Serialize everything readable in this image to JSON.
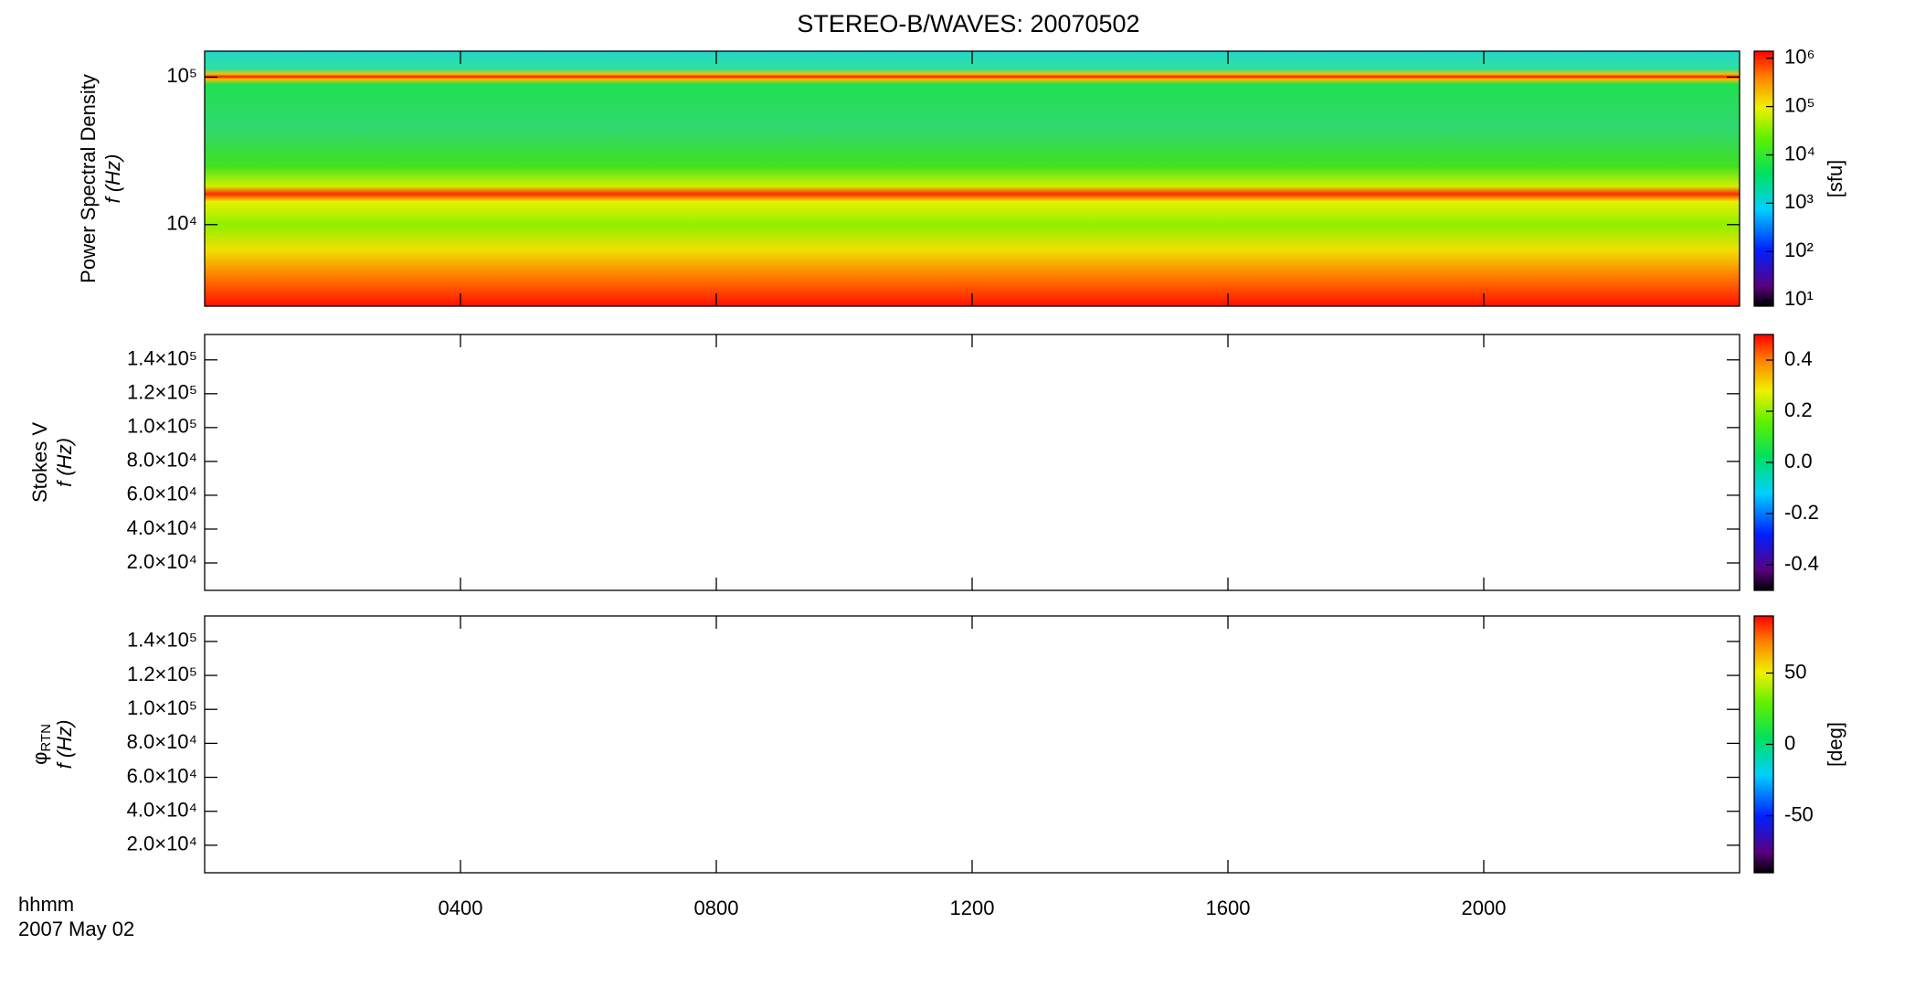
{
  "title": "STEREO-B/WAVES: 20070502",
  "x_axis": {
    "label": "hhmm",
    "date": "2007 May 02",
    "xlim": [
      0,
      24
    ],
    "xticks": [
      {
        "value": 4,
        "label": "0400"
      },
      {
        "value": 8,
        "label": "0800"
      },
      {
        "value": 12,
        "label": "1200"
      },
      {
        "value": 16,
        "label": "1600"
      },
      {
        "value": 20,
        "label": "2000"
      }
    ]
  },
  "chart_data": [
    {
      "type": "heatmap",
      "quantity": "Power Spectral Density",
      "ylabel": "f (Hz)",
      "yscale": "log",
      "ylim": [
        2800,
        150000
      ],
      "yticks": [
        {
          "value": 10000,
          "label": "10⁴"
        },
        {
          "value": 100000,
          "label": "10⁵"
        }
      ],
      "colorbar": {
        "scale": "log",
        "lim": [
          7.4,
          1400000
        ],
        "label": "[sfu]",
        "ticks": [
          {
            "value": 10,
            "label": "10¹"
          },
          {
            "value": 100,
            "label": "10²"
          },
          {
            "value": 1000,
            "label": "10³"
          },
          {
            "value": 10000,
            "label": "10⁴"
          },
          {
            "value": 100000,
            "label": "10⁵"
          },
          {
            "value": 1000000,
            "label": "10⁶"
          }
        ]
      }
    },
    {
      "type": "heatmap",
      "quantity": "Stokes V",
      "ylabel": "f (Hz)",
      "yscale": "linear",
      "ylim": [
        3800,
        155000
      ],
      "yticks": [
        {
          "value": 20000,
          "label": "2.0×10⁴"
        },
        {
          "value": 40000,
          "label": "4.0×10⁴"
        },
        {
          "value": 60000,
          "label": "6.0×10⁴"
        },
        {
          "value": 80000,
          "label": "8.0×10⁴"
        },
        {
          "value": 100000,
          "label": "1.0×10⁵"
        },
        {
          "value": 120000,
          "label": "1.2×10⁵"
        },
        {
          "value": 140000,
          "label": "1.4×10⁵"
        }
      ],
      "colorbar": {
        "scale": "linear",
        "lim": [
          -0.5,
          0.5
        ],
        "ticks": [
          {
            "value": -0.4,
            "label": "-0.4"
          },
          {
            "value": -0.2,
            "label": "-0.2"
          },
          {
            "value": 0,
            "label": "0.0"
          },
          {
            "value": 0.2,
            "label": "0.2"
          },
          {
            "value": 0.4,
            "label": "0.4"
          }
        ]
      }
    },
    {
      "type": "heatmap",
      "quantity": "φ",
      "quantity_subscript": "RTN",
      "ylabel": "f (Hz)",
      "yscale": "linear",
      "ylim": [
        3800,
        155000
      ],
      "yticks": [
        {
          "value": 20000,
          "label": "2.0×10⁴"
        },
        {
          "value": 40000,
          "label": "4.0×10⁴"
        },
        {
          "value": 60000,
          "label": "6.0×10⁴"
        },
        {
          "value": 80000,
          "label": "8.0×10⁴"
        },
        {
          "value": 100000,
          "label": "1.0×10⁵"
        },
        {
          "value": 120000,
          "label": "1.2×10⁵"
        },
        {
          "value": 140000,
          "label": "1.4×10⁵"
        }
      ],
      "colorbar": {
        "scale": "linear",
        "lim": [
          -90,
          90
        ],
        "label": "[deg]",
        "ticks": [
          -50,
          0,
          50
        ]
      }
    }
  ]
}
